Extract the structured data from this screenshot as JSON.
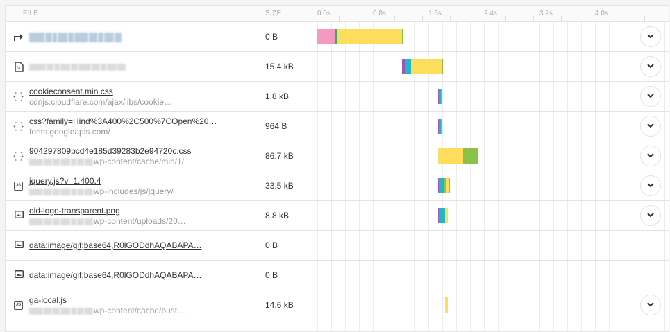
{
  "header": {
    "file_label": "FILE",
    "size_label": "SIZE",
    "ticks": [
      "0.0s",
      "0.8s",
      "1.6s",
      "2.4s",
      "3.2s",
      "4.0s"
    ]
  },
  "colors": {
    "blocked": "#f49ac1",
    "dns": "#9b59b6",
    "connect": "#20b8c8",
    "ssl": "#3aa776",
    "send": "#5cb85c",
    "wait": "#fddd5c",
    "receive": "#8bc34a"
  },
  "rows": [
    {
      "icon": "redirect",
      "name": "[redacted]",
      "host": "",
      "size": "0 B",
      "expandable": true,
      "bar": {
        "start": 0,
        "segments": [
          {
            "type": "blocked",
            "w": 26
          },
          {
            "type": "ssl",
            "w": 3
          },
          {
            "type": "wait",
            "w": 93
          },
          {
            "type": "receive",
            "w": 1
          }
        ]
      }
    },
    {
      "icon": "html",
      "name": "[redacted]",
      "host": "",
      "size": "15.4 kB",
      "expandable": true,
      "bar": {
        "start": 122,
        "segments": [
          {
            "type": "dns",
            "w": 5
          },
          {
            "type": "connect",
            "w": 8
          },
          {
            "type": "wait",
            "w": 44
          },
          {
            "type": "receive",
            "w": 2
          }
        ]
      }
    },
    {
      "icon": "css",
      "name": "cookieconsent.min.css",
      "host": "cdnjs.cloudflare.com/ajax/libs/cookie…",
      "size": "1.8 kB",
      "expandable": true,
      "bar": {
        "start": 174,
        "segments": [
          {
            "type": "dns",
            "w": 2
          },
          {
            "type": "connect",
            "w": 2
          },
          {
            "type": "receive",
            "w": 2
          }
        ]
      }
    },
    {
      "icon": "css",
      "name": "css?family=Hind%3A400%2C500%7COpen%20…",
      "host": "fonts.googleapis.com/",
      "size": "964 B",
      "expandable": true,
      "bar": {
        "start": 174,
        "segments": [
          {
            "type": "dns",
            "w": 2
          },
          {
            "type": "connect",
            "w": 2
          },
          {
            "type": "receive",
            "w": 2
          }
        ]
      }
    },
    {
      "icon": "css",
      "name": "904297809bcd4e185d39283b2e94720c.css",
      "host": "wp-content/cache/min/1/",
      "size": "86.7 kB",
      "expandable": true,
      "bar": {
        "start": 174,
        "segments": [
          {
            "type": "wait",
            "w": 36
          },
          {
            "type": "receive",
            "w": 22
          }
        ]
      }
    },
    {
      "icon": "js",
      "name": "jquery.js?v=1.400.4",
      "host": "wp-includes/js/jquery/",
      "size": "33.5 kB",
      "expandable": true,
      "bar": {
        "start": 174,
        "segments": [
          {
            "type": "dns",
            "w": 2
          },
          {
            "type": "connect",
            "w": 7
          },
          {
            "type": "receive",
            "w": 3
          },
          {
            "type": "wait",
            "w": 3
          },
          {
            "type": "receive",
            "w": 2
          }
        ]
      }
    },
    {
      "icon": "image",
      "name": "old-logo-transparent.png",
      "host": "wp-content/uploads/20…",
      "size": "8.8 kB",
      "expandable": true,
      "bar": {
        "start": 174,
        "segments": [
          {
            "type": "dns",
            "w": 2
          },
          {
            "type": "connect",
            "w": 8
          },
          {
            "type": "wait",
            "w": 4
          }
        ]
      }
    },
    {
      "icon": "image",
      "name": "data:image/gif;base64,R0lGODdhAQABAPA…",
      "host": "",
      "size": "0 B",
      "expandable": false,
      "bar": null
    },
    {
      "icon": "image",
      "name": "data:image/gif;base64,R0lGODdhAQABAPA…",
      "host": "",
      "size": "0 B",
      "expandable": false,
      "bar": null
    },
    {
      "icon": "js",
      "name": "ga-local.js",
      "host": "wp-content/cache/bust…",
      "size": "14.6 kB",
      "expandable": true,
      "bar": {
        "start": 184,
        "segments": [
          {
            "type": "wait",
            "w": 4
          }
        ]
      }
    }
  ]
}
